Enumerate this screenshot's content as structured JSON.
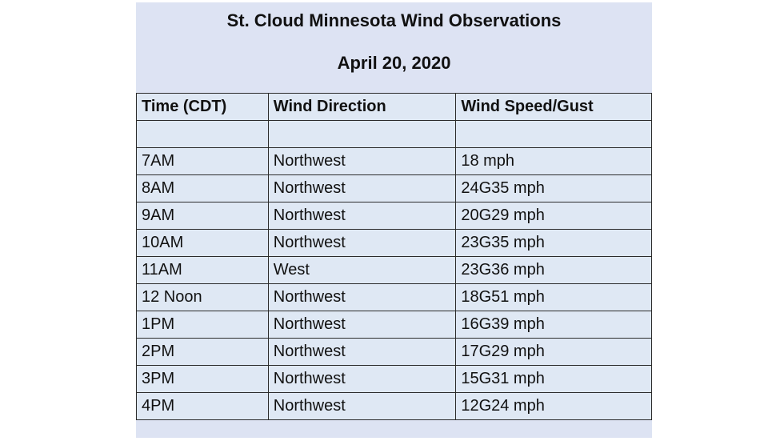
{
  "title": "St. Cloud Minnesota Wind Observations",
  "date": "April 20, 2020",
  "table": {
    "headers": [
      "Time (CDT)",
      "Wind Direction",
      "Wind Speed/Gust"
    ],
    "rows": [
      [
        "7AM",
        "Northwest",
        "18 mph"
      ],
      [
        "8AM",
        "Northwest",
        "24G35 mph"
      ],
      [
        "9AM",
        "Northwest",
        "20G29 mph"
      ],
      [
        "10AM",
        "Northwest",
        "23G35 mph"
      ],
      [
        "11AM",
        "West",
        "23G36 mph"
      ],
      [
        "12 Noon",
        "Northwest",
        "18G51 mph"
      ],
      [
        "1PM",
        "Northwest",
        "16G39 mph"
      ],
      [
        "2PM",
        "Northwest",
        "17G29 mph"
      ],
      [
        "3PM",
        "Northwest",
        "15G31 mph"
      ],
      [
        "4PM",
        "Northwest",
        "12G24 mph"
      ]
    ]
  }
}
